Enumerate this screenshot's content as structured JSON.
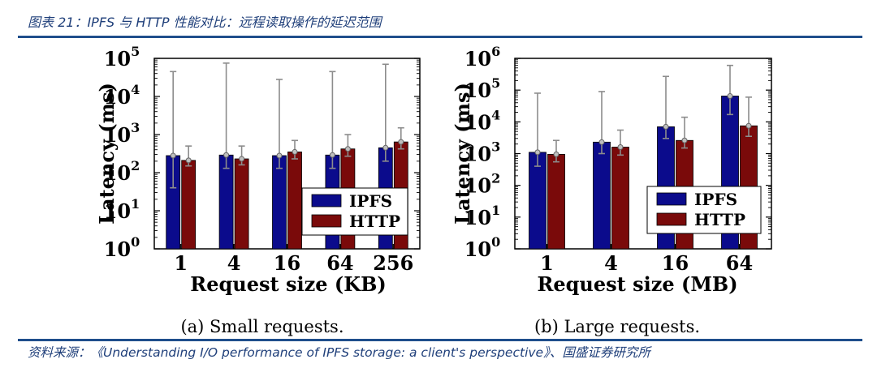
{
  "header": {
    "title": "图表 21：IPFS 与 HTTP 性能对比：远程读取操作的延迟范围"
  },
  "footer": {
    "source": "资料来源：《Understanding I/O performance of IPFS storage: a client's perspective》、国盛证券研究所"
  },
  "colors": {
    "ipfs": "#0b0b8c",
    "http": "#7a0a0a",
    "whisker": "#8c8c8c",
    "marker": "#bfbfbf"
  },
  "chart_data": [
    {
      "type": "bar",
      "caption": "(a)  Small requests.",
      "xlabel": "Request size (KB)",
      "ylabel": "Latency (ms)",
      "yscale": "log",
      "ylim": [
        1,
        100000
      ],
      "yticks": [
        {
          "base": "10",
          "exp": "0"
        },
        {
          "base": "10",
          "exp": "1"
        },
        {
          "base": "10",
          "exp": "2"
        },
        {
          "base": "10",
          "exp": "3"
        },
        {
          "base": "10",
          "exp": "4"
        },
        {
          "base": "10",
          "exp": "5"
        }
      ],
      "categories": [
        "1",
        "4",
        "16",
        "64",
        "256"
      ],
      "legend": "center-right",
      "series": [
        {
          "name": "IPFS",
          "values": [
            280,
            290,
            280,
            290,
            450
          ],
          "err_low": [
            40,
            130,
            130,
            130,
            200
          ],
          "err_high": [
            45000,
            75000,
            28000,
            45000,
            70000
          ]
        },
        {
          "name": "HTTP",
          "values": [
            210,
            230,
            350,
            420,
            640
          ],
          "err_low": [
            150,
            160,
            230,
            270,
            420
          ],
          "err_high": [
            500,
            500,
            700,
            1000,
            1500
          ]
        }
      ]
    },
    {
      "type": "bar",
      "caption": "(b)  Large requests.",
      "xlabel": "Request size (MB)",
      "ylabel": "Latency (ms)",
      "yscale": "log",
      "ylim": [
        1,
        1000000
      ],
      "yticks": [
        {
          "base": "10",
          "exp": "0"
        },
        {
          "base": "10",
          "exp": "1"
        },
        {
          "base": "10",
          "exp": "2"
        },
        {
          "base": "10",
          "exp": "3"
        },
        {
          "base": "10",
          "exp": "4"
        },
        {
          "base": "10",
          "exp": "5"
        },
        {
          "base": "10",
          "exp": "6"
        }
      ],
      "categories": [
        "1",
        "4",
        "16",
        "64"
      ],
      "legend": "lower-right",
      "series": [
        {
          "name": "IPFS",
          "values": [
            1100,
            2300,
            7000,
            65000
          ],
          "err_low": [
            400,
            1000,
            3000,
            17000
          ],
          "err_high": [
            80000,
            90000,
            270000,
            600000
          ]
        },
        {
          "name": "HTTP",
          "values": [
            950,
            1600,
            2600,
            7500
          ],
          "err_low": [
            550,
            900,
            1500,
            3500
          ],
          "err_high": [
            2600,
            5500,
            14000,
            60000
          ]
        }
      ]
    }
  ]
}
